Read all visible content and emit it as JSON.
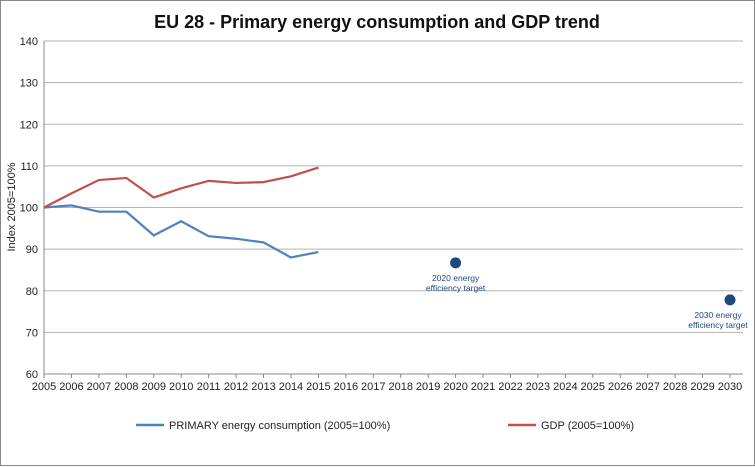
{
  "chart_data": {
    "type": "line",
    "title": "EU 28 - Primary energy consumption and GDP trend",
    "xlabel": "",
    "ylabel": "Index 2005=100%",
    "xlim": [
      2005,
      2030
    ],
    "ylim": [
      60,
      140
    ],
    "yticks": [
      60,
      70,
      80,
      90,
      100,
      110,
      120,
      130,
      140
    ],
    "xticks": [
      2005,
      2006,
      2007,
      2008,
      2009,
      2010,
      2011,
      2012,
      2013,
      2014,
      2015,
      2016,
      2017,
      2018,
      2019,
      2020,
      2021,
      2022,
      2023,
      2024,
      2025,
      2026,
      2027,
      2028,
      2029,
      2030
    ],
    "grid": "horizontal",
    "legend_placement": "bottom",
    "series": [
      {
        "name": "PRIMARY energy consumption (2005=100%)",
        "color": "#4F81BD",
        "x": [
          2005,
          2006,
          2007,
          2008,
          2009,
          2010,
          2011,
          2012,
          2013,
          2014,
          2015
        ],
        "values": [
          100,
          100.5,
          99.0,
          99.0,
          93.3,
          96.7,
          93.1,
          92.5,
          91.6,
          88.0,
          89.3
        ]
      },
      {
        "name": "GDP (2005=100%)",
        "color": "#C0504D",
        "x": [
          2005,
          2006,
          2007,
          2008,
          2009,
          2010,
          2011,
          2012,
          2013,
          2014,
          2015
        ],
        "values": [
          100,
          103.4,
          106.6,
          107.1,
          102.4,
          104.6,
          106.4,
          105.9,
          106.1,
          107.5,
          109.6
        ]
      }
    ],
    "annotations": [
      {
        "x": 2020,
        "y": 86.7,
        "lines": [
          "2020 energy",
          "efficiency target"
        ],
        "color": "#1F497D"
      },
      {
        "x": 2030,
        "y": 77.8,
        "lines": [
          "2030 energy",
          "efficiency target"
        ],
        "color": "#1F497D"
      }
    ]
  }
}
